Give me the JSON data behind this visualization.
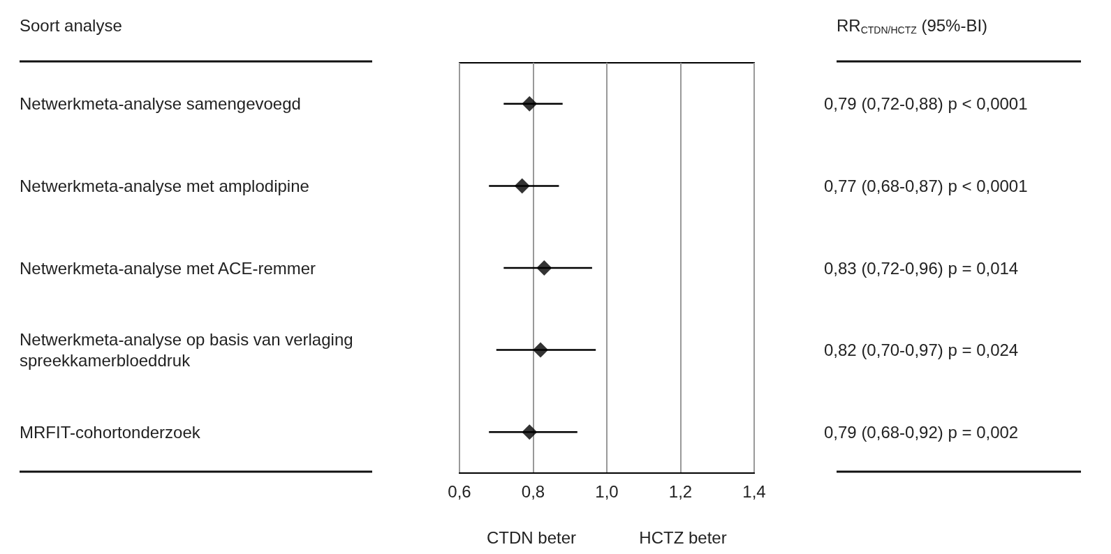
{
  "chart_data": {
    "type": "scatter",
    "orientation": "horizontal",
    "color": "#000000",
    "marker": "diamond",
    "grid": "x",
    "categories": [
      "Netwerkmeta-analyse samengevoegd",
      "Netwerkmeta-analyse met amplodipine",
      "Netwerkmeta-analyse met ACE-remmer",
      "Netwerkmeta-analyse op basis van verlaging spreekkamerbloeddruk",
      "MRFIT-cohortonderzoek"
    ],
    "values": [
      0.79,
      0.77,
      0.83,
      0.82,
      0.79
    ],
    "errors": [
      [
        0.72,
        0.88
      ],
      [
        0.68,
        0.87
      ],
      [
        0.72,
        0.96
      ],
      [
        0.7,
        0.97
      ],
      [
        0.68,
        0.92
      ]
    ],
    "xlim": [
      0.6,
      1.4
    ],
    "xticks": [
      {
        "value": 0.6,
        "label": "0,6"
      },
      {
        "value": 0.8,
        "label": "0,8"
      },
      {
        "value": 1.0,
        "label": "1,0"
      },
      {
        "value": 1.2,
        "label": "1,2"
      },
      {
        "value": 1.4,
        "label": "1,4"
      }
    ],
    "annotations": [
      "Soort analyse",
      "RR$_{CTDN/HCTZ}$ (95%-BI)",
      "CTDN beter",
      "HCTZ beter",
      "0,79 (0,72-0,88) p < 0,0001",
      "0,77 (0,68-0,87) p < 0,0001",
      "0,83 (0,72-0,96) p = 0,014",
      "0,82 (0,70-0,97) p = 0,024",
      "0,79 (0,68-0,92) p = 0,002"
    ]
  }
}
